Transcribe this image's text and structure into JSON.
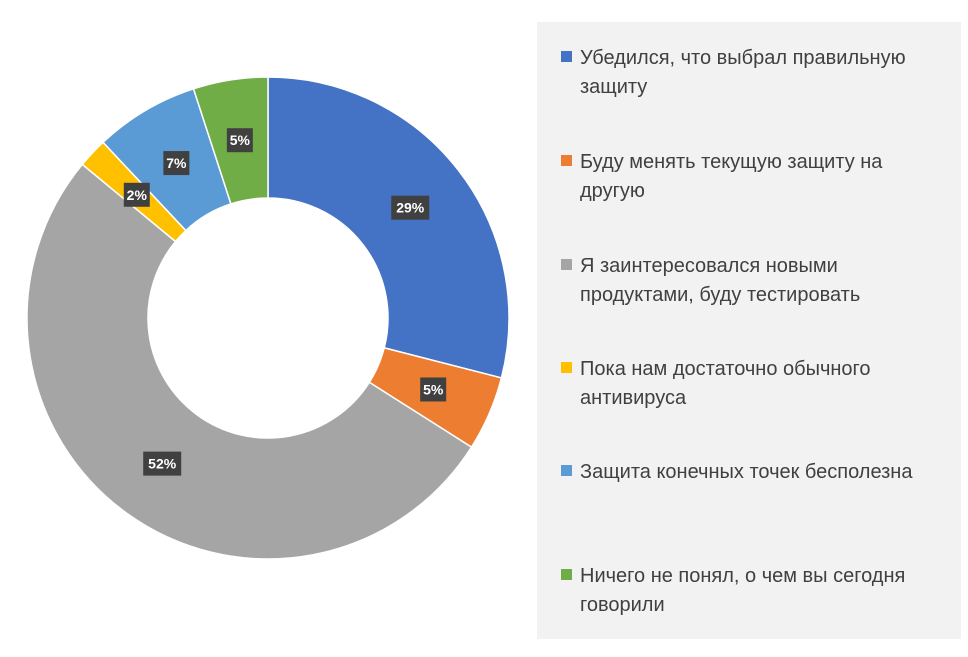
{
  "chart_data": {
    "type": "pie",
    "variant": "doughnut",
    "title": "",
    "categories": [
      "Убедился, что выбрал правильную защиту",
      "Буду менять текущую защиту на другую",
      "Я заинтересовался новыми продуктами, буду тестировать",
      "Пока нам достаточно обычного антивируса",
      "Защита конечных точек бесполезна",
      "Ничего не понял, о чем вы сегодня говорили"
    ],
    "values": [
      29,
      5,
      52,
      2,
      7,
      5
    ],
    "value_labels": [
      "29%",
      "5%",
      "52%",
      "2%",
      "7%",
      "5%"
    ],
    "colors": [
      "#4472c4",
      "#ed7d31",
      "#a5a5a5",
      "#ffc000",
      "#5b9bd5",
      "#70ad47"
    ],
    "legend_position": "right",
    "legend_lines": [
      [
        "Убедился, что выбрал правильную",
        "защиту"
      ],
      [
        "Буду менять текущую защиту на",
        "другую"
      ],
      [
        "Я заинтересовался новыми",
        "продуктами, буду тестировать"
      ],
      [
        "Пока нам достаточно обычного",
        "антивируса"
      ],
      [
        "Защита конечных точек бесполезна"
      ],
      [
        "Ничего не понял, о чем вы сегодня",
        "говорили"
      ]
    ]
  }
}
